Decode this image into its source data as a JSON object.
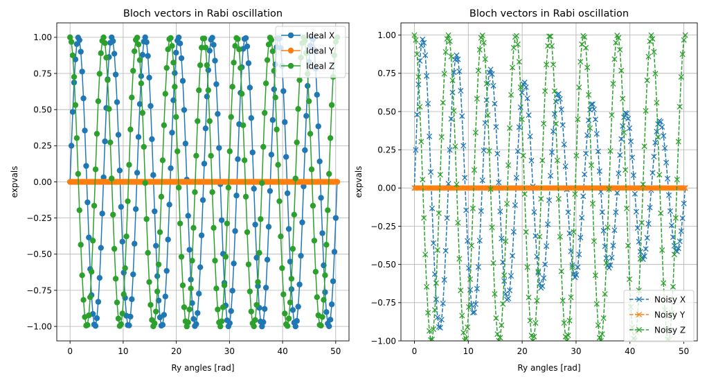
{
  "figure": {
    "background": "#ffffff"
  },
  "chart_data": [
    {
      "type": "line",
      "title": "Bloch vectors in Rabi oscillation",
      "xlabel": "Ry angles [rad]",
      "ylabel": "expvals",
      "xlim": [
        -2.5,
        52.5
      ],
      "ylim": [
        -1.1,
        1.1
      ],
      "x_ticks": [
        0,
        10,
        20,
        30,
        40,
        50
      ],
      "x_tick_labels": [
        "0",
        "10",
        "20",
        "30",
        "40",
        "50"
      ],
      "y_ticks": [
        -1.0,
        -0.75,
        -0.5,
        -0.25,
        0.0,
        0.25,
        0.5,
        0.75,
        1.0
      ],
      "y_tick_labels": [
        "−1.00",
        "−0.75",
        "−0.50",
        "−0.25",
        "0.00",
        "0.25",
        "0.50",
        "0.75",
        "1.00"
      ],
      "grid": true,
      "legend_position": "top-right",
      "x": {
        "start": 0.0,
        "stop": 50.2655,
        "count": 200,
        "note": "evenly spaced angles 0..16π"
      },
      "series": [
        {
          "name": "Ideal X",
          "color": "#1f77b4",
          "marker": "circle",
          "linestyle": "solid",
          "function": "sin(theta)",
          "decay": 0.0
        },
        {
          "name": "Ideal Y",
          "color": "#ff7f0e",
          "marker": "circle",
          "linestyle": "solid",
          "function": "zero",
          "decay": 0.0
        },
        {
          "name": "Ideal Z",
          "color": "#2ca02c",
          "marker": "circle",
          "linestyle": "solid",
          "function": "cos(theta)",
          "decay": 0.0
        }
      ]
    },
    {
      "type": "line",
      "title": "Bloch vectors in Rabi oscillation",
      "xlabel": "Ry angles [rad]",
      "ylabel": "expvals",
      "xlim": [
        -2.5,
        52.5
      ],
      "ylim": [
        -1.0,
        1.08
      ],
      "x_ticks": [
        0,
        10,
        20,
        30,
        40,
        50
      ],
      "x_tick_labels": [
        "0",
        "10",
        "20",
        "30",
        "40",
        "50"
      ],
      "y_ticks": [
        -1.0,
        -0.75,
        -0.5,
        -0.25,
        0.0,
        0.25,
        0.5,
        0.75,
        1.0
      ],
      "y_tick_labels": [
        "−1.00",
        "−0.75",
        "−0.50",
        "−0.25",
        "0.00",
        "0.25",
        "0.50",
        "0.75",
        "1.00"
      ],
      "grid": true,
      "legend_position": "bottom-right",
      "x": {
        "start": 0.0,
        "stop": 50.2655,
        "count": 200,
        "note": "evenly spaced angles 0..16π"
      },
      "series": [
        {
          "name": "Noisy X",
          "color": "#1f77b4",
          "marker": "x",
          "linestyle": "dashed",
          "function": "sin(theta)*exp(-decay*theta)",
          "decay": 0.018
        },
        {
          "name": "Noisy Y",
          "color": "#ff7f0e",
          "marker": "x",
          "linestyle": "dashed",
          "function": "zero",
          "decay": 0.0
        },
        {
          "name": "Noisy Z",
          "color": "#2ca02c",
          "marker": "x",
          "linestyle": "dashed",
          "function": "cos(theta)*exp(-decay*theta)",
          "decay": 0.0
        }
      ]
    }
  ]
}
